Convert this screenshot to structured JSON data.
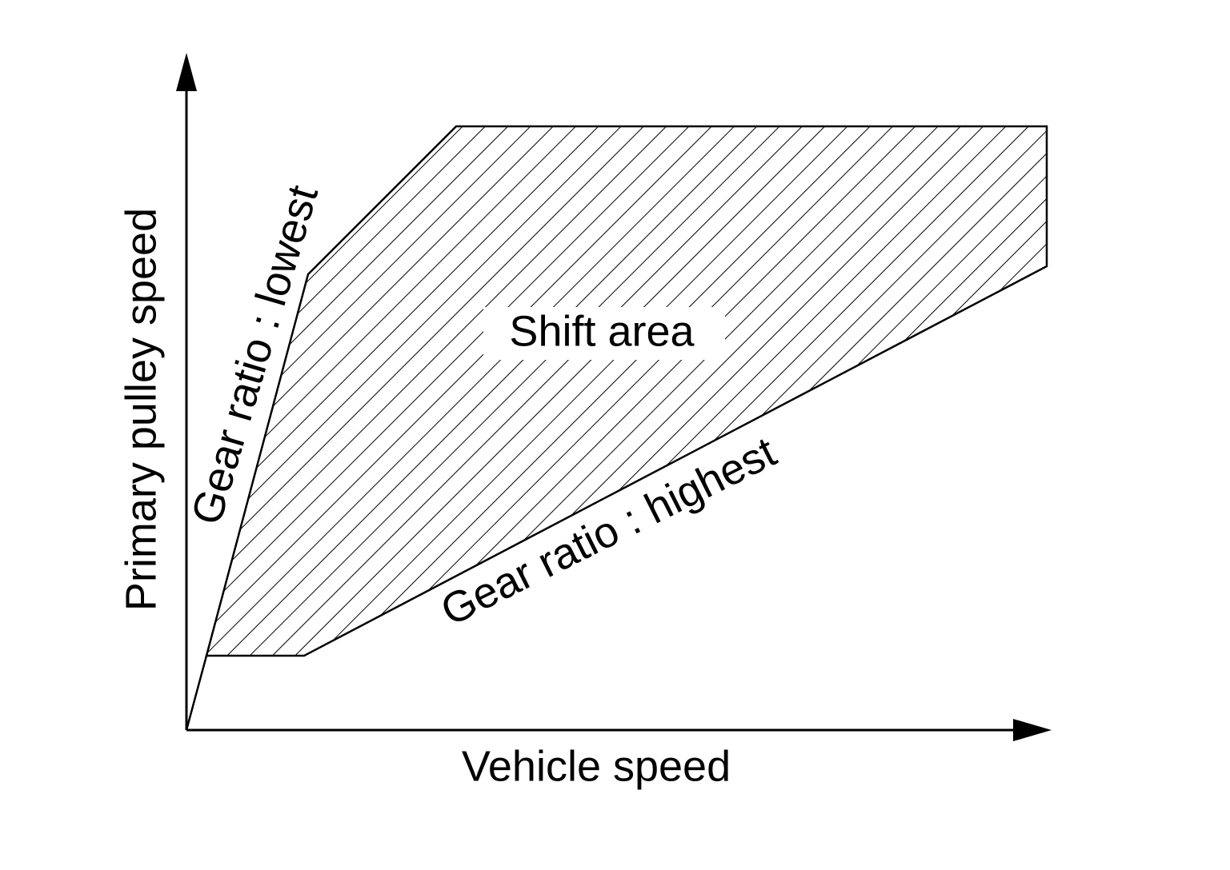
{
  "axes": {
    "y_label": "Primary pulley speed",
    "x_label": "Vehicle speed"
  },
  "curves": {
    "lowest": "Gear ratio : lowest",
    "highest": "Gear ratio : highest"
  },
  "region": {
    "label": "Shift area"
  }
}
